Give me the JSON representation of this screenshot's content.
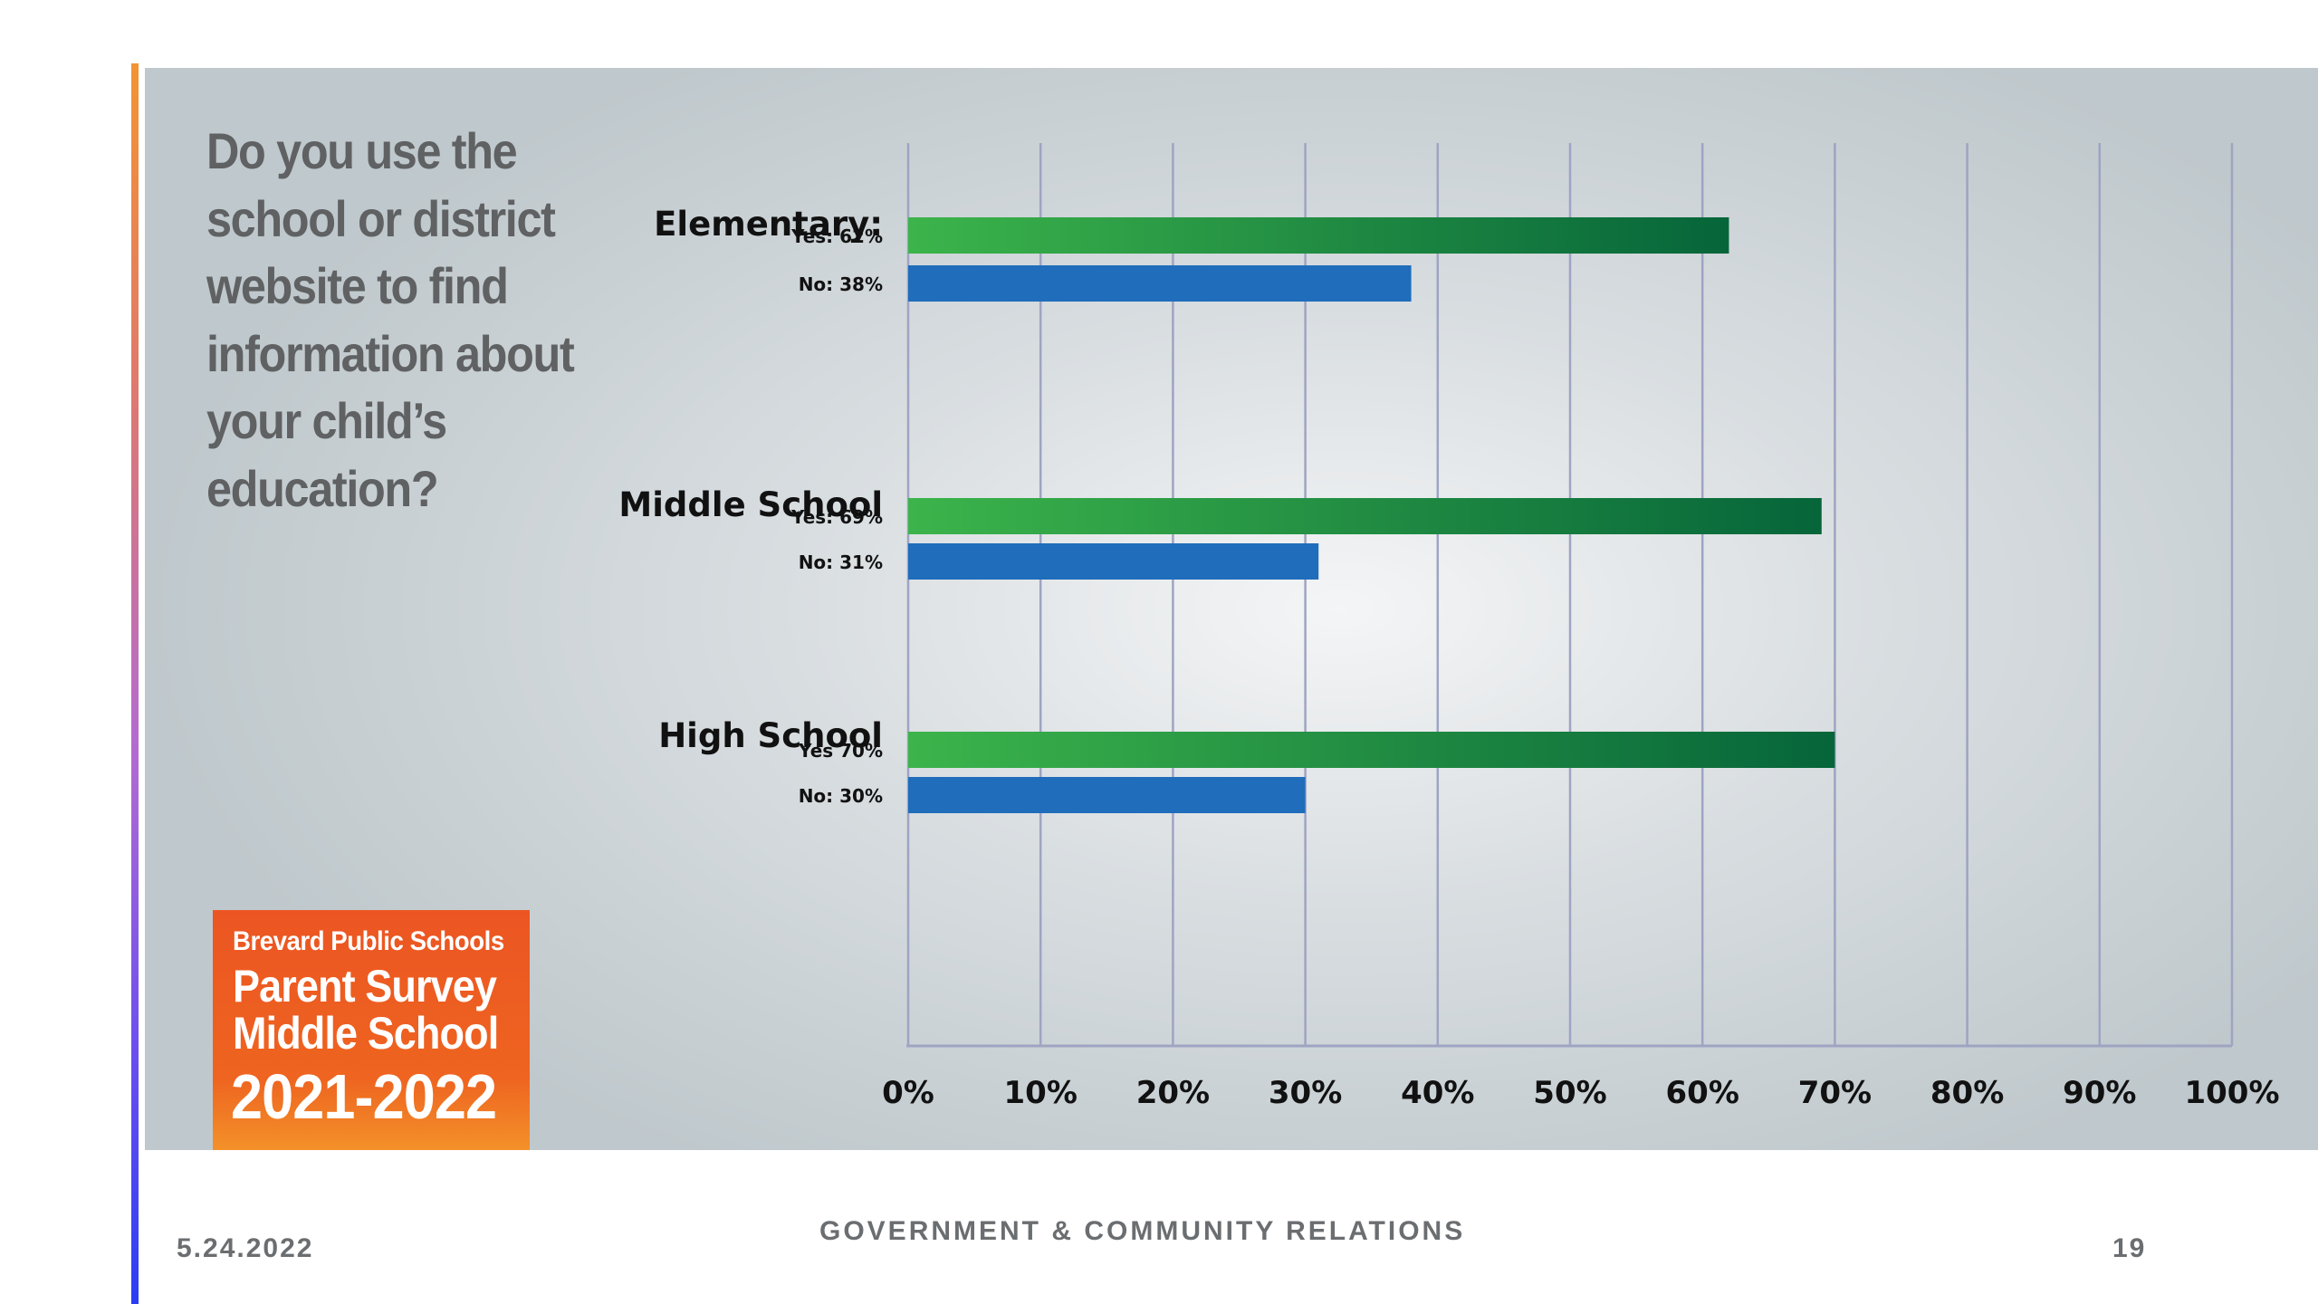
{
  "question": "Do you use the school or district website to find information about your child’s education?",
  "logo": {
    "line1": "Brevard Public Schools",
    "line2": "Parent Survey",
    "line3": "Middle School",
    "line4": "2021-2022"
  },
  "footer": {
    "date": "5.24.2022",
    "department": "GOVERNMENT & COMMUNITY RELATIONS",
    "page": "19"
  },
  "colors": {
    "yes_start": "#3cb44b",
    "yes_end": "#06653a",
    "no": "#1f6dbb",
    "grid": "#9fa4c2",
    "label": "#111111",
    "logo": "#ee6420"
  },
  "chart_data": {
    "type": "bar",
    "orientation": "horizontal",
    "xlim": [
      0,
      100
    ],
    "xticks": [
      "0%",
      "10%",
      "20%",
      "30%",
      "40%",
      "50%",
      "60%",
      "70%",
      "80%",
      "90%",
      "100%"
    ],
    "grid": "vertical",
    "groups": [
      {
        "name": "Elementary:",
        "bars": [
          {
            "label": "Yes: 62%",
            "value": 62,
            "kind": "yes"
          },
          {
            "label": "No: 38%",
            "value": 38,
            "kind": "no"
          }
        ]
      },
      {
        "name": "Middle School",
        "bars": [
          {
            "label": "Yes: 69%",
            "value": 69,
            "kind": "yes"
          },
          {
            "label": "No: 31%",
            "value": 31,
            "kind": "no"
          }
        ]
      },
      {
        "name": "High School",
        "bars": [
          {
            "label": "Yes 70%",
            "value": 70,
            "kind": "yes"
          },
          {
            "label": "No: 30%",
            "value": 30,
            "kind": "no"
          }
        ]
      }
    ]
  }
}
